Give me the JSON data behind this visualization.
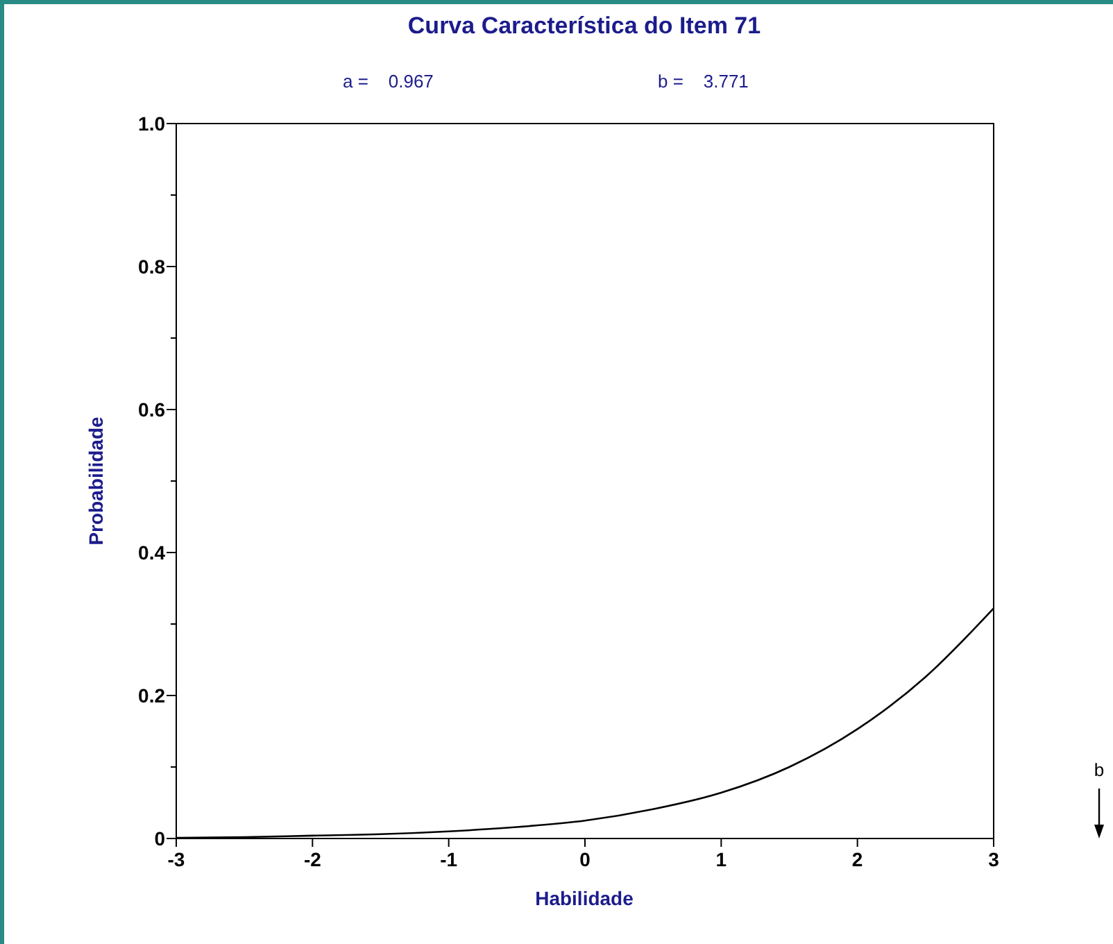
{
  "chart_data": {
    "type": "line",
    "title": "Curva Característica do Item 71",
    "xlabel": "Habilidade",
    "ylabel": "Probabilidade",
    "annotations": [
      "a =    0.967",
      "b =    3.771",
      "b"
    ],
    "x": [
      -3,
      -2.5,
      -2,
      -1.5,
      -1,
      -0.5,
      0,
      0.5,
      1,
      1.5,
      2,
      2.5,
      3
    ],
    "series": [
      {
        "color": "#000000",
        "values": [
          0.001,
          0.002,
          0.004,
          0.006,
          0.01,
          0.016,
          0.025,
          0.041,
          0.064,
          0.1,
          0.153,
          0.226,
          0.322
        ]
      }
    ],
    "xlim": [
      -3,
      3
    ],
    "xticks": [
      -3,
      -2,
      -1,
      0,
      1,
      2,
      3
    ],
    "ylim": [
      0,
      1
    ],
    "yticks": [
      0,
      {
        "value": 0.1,
        "label": null
      },
      {
        "value": 0.2,
        "label": "0.2"
      },
      {
        "value": 0.3,
        "label": null
      },
      {
        "value": 0.4,
        "label": "0.4"
      },
      {
        "value": 0.5,
        "label": null
      },
      {
        "value": 0.6,
        "label": "0.6"
      },
      {
        "value": 0.7,
        "label": null
      },
      {
        "value": 0.8,
        "label": "0.8"
      },
      {
        "value": 0.9,
        "label": null
      },
      {
        "value": 1,
        "label": "1.0"
      }
    ],
    "grid": false,
    "marker": "none",
    "line_style": "solid"
  }
}
